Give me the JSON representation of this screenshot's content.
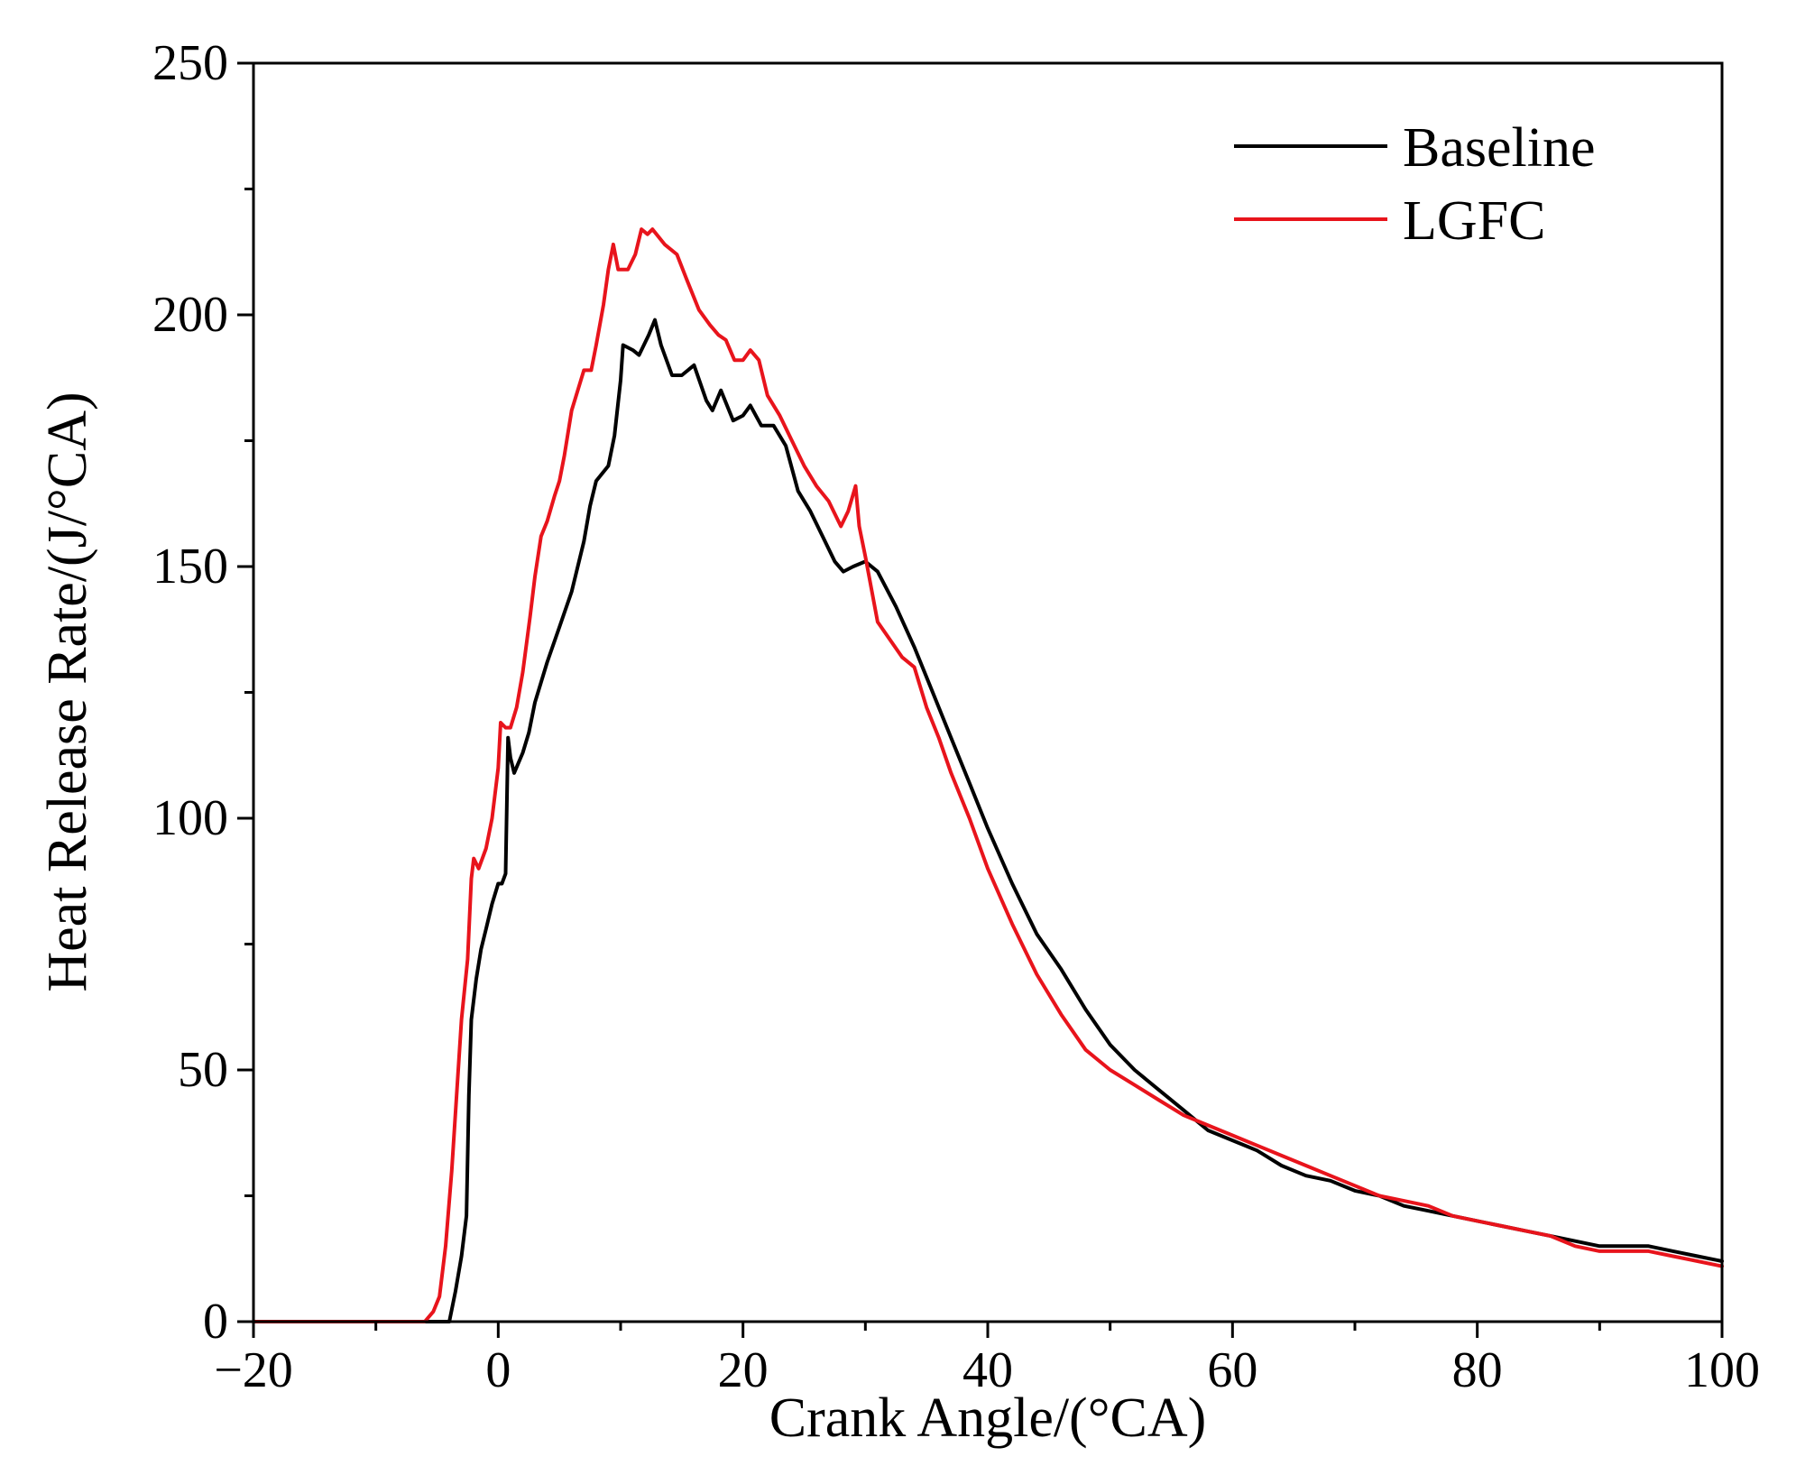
{
  "chart_data": {
    "type": "line",
    "title": "",
    "xlabel": "Crank Angle/(°CA)",
    "ylabel": "Heat Release Rate/(J/°CA)",
    "xlim": [
      -20,
      100
    ],
    "ylim": [
      0,
      250
    ],
    "xticks": [
      -20,
      0,
      20,
      40,
      60,
      80,
      100
    ],
    "xtick_labels": [
      "−20",
      "0",
      "20",
      "40",
      "60",
      "80",
      "100"
    ],
    "yticks": [
      0,
      50,
      100,
      150,
      200,
      250
    ],
    "ytick_labels": [
      "0",
      "50",
      "100",
      "150",
      "200",
      "250"
    ],
    "x_minor_step": 10,
    "y_minor_step": 25,
    "grid": false,
    "legend_position": "top-right",
    "series": [
      {
        "name": "Baseline",
        "color": "#000000",
        "points": [
          [
            -20,
            0
          ],
          [
            -4,
            0
          ],
          [
            -3.5,
            6
          ],
          [
            -3,
            13
          ],
          [
            -2.6,
            21
          ],
          [
            -2.4,
            45
          ],
          [
            -2.2,
            60
          ],
          [
            -1.8,
            68
          ],
          [
            -1.4,
            74
          ],
          [
            -1,
            78
          ],
          [
            -0.5,
            83
          ],
          [
            0,
            87
          ],
          [
            0.3,
            87
          ],
          [
            0.6,
            89
          ],
          [
            0.8,
            116
          ],
          [
            1,
            112
          ],
          [
            1.3,
            109
          ],
          [
            2,
            113
          ],
          [
            2.5,
            117
          ],
          [
            3,
            123
          ],
          [
            4,
            131
          ],
          [
            5,
            138
          ],
          [
            6,
            145
          ],
          [
            7,
            155
          ],
          [
            7.5,
            162
          ],
          [
            8,
            167
          ],
          [
            9,
            170
          ],
          [
            9.5,
            176
          ],
          [
            10,
            187
          ],
          [
            10.2,
            194
          ],
          [
            11,
            193
          ],
          [
            11.5,
            192
          ],
          [
            12.3,
            196
          ],
          [
            12.8,
            199
          ],
          [
            13.3,
            194
          ],
          [
            14.2,
            188
          ],
          [
            15,
            188
          ],
          [
            16,
            190
          ],
          [
            17,
            183
          ],
          [
            17.5,
            181
          ],
          [
            18.2,
            185
          ],
          [
            19.2,
            179
          ],
          [
            20,
            180
          ],
          [
            20.6,
            182
          ],
          [
            21.5,
            178
          ],
          [
            22.5,
            178
          ],
          [
            23.5,
            174
          ],
          [
            24.5,
            165
          ],
          [
            25.5,
            161
          ],
          [
            26.5,
            156
          ],
          [
            27.5,
            151
          ],
          [
            28.2,
            149
          ],
          [
            29,
            150
          ],
          [
            30,
            151
          ],
          [
            31,
            149
          ],
          [
            32.5,
            142
          ],
          [
            34,
            134
          ],
          [
            35.5,
            125
          ],
          [
            37,
            116
          ],
          [
            38.5,
            107
          ],
          [
            40,
            98
          ],
          [
            42,
            87
          ],
          [
            44,
            77
          ],
          [
            46,
            70
          ],
          [
            48,
            62
          ],
          [
            50,
            55
          ],
          [
            52,
            50
          ],
          [
            54,
            46
          ],
          [
            56,
            42
          ],
          [
            58,
            38
          ],
          [
            60,
            36
          ],
          [
            62,
            34
          ],
          [
            64,
            31
          ],
          [
            66,
            29
          ],
          [
            68,
            28
          ],
          [
            70,
            26
          ],
          [
            72,
            25
          ],
          [
            74,
            23
          ],
          [
            76,
            22
          ],
          [
            78,
            21
          ],
          [
            80,
            20
          ],
          [
            82,
            19
          ],
          [
            84,
            18
          ],
          [
            86,
            17
          ],
          [
            88,
            16
          ],
          [
            90,
            15
          ],
          [
            92,
            15
          ],
          [
            94,
            15
          ],
          [
            96,
            14
          ],
          [
            98,
            13
          ],
          [
            100,
            12
          ]
        ]
      },
      {
        "name": "LGFC",
        "color": "#e8141c",
        "points": [
          [
            -20,
            0
          ],
          [
            -6,
            0
          ],
          [
            -5.3,
            2
          ],
          [
            -4.8,
            5
          ],
          [
            -4.3,
            15
          ],
          [
            -3.8,
            30
          ],
          [
            -3.4,
            45
          ],
          [
            -3,
            60
          ],
          [
            -2.5,
            72
          ],
          [
            -2.2,
            88
          ],
          [
            -2,
            92
          ],
          [
            -1.6,
            90
          ],
          [
            -1,
            94
          ],
          [
            -0.5,
            100
          ],
          [
            0,
            110
          ],
          [
            0.2,
            119
          ],
          [
            0.6,
            118
          ],
          [
            1,
            118
          ],
          [
            1.5,
            122
          ],
          [
            2,
            129
          ],
          [
            2.6,
            140
          ],
          [
            3,
            148
          ],
          [
            3.5,
            156
          ],
          [
            4,
            159
          ],
          [
            4.6,
            164
          ],
          [
            5,
            167
          ],
          [
            5.4,
            172
          ],
          [
            6,
            181
          ],
          [
            7,
            189
          ],
          [
            7.6,
            189
          ],
          [
            8,
            194
          ],
          [
            8.6,
            202
          ],
          [
            9,
            209
          ],
          [
            9.4,
            214
          ],
          [
            9.8,
            209
          ],
          [
            10.6,
            209
          ],
          [
            11.2,
            212
          ],
          [
            11.7,
            217
          ],
          [
            12.2,
            216
          ],
          [
            12.6,
            217
          ],
          [
            13.6,
            214
          ],
          [
            14.6,
            212
          ],
          [
            15.4,
            207
          ],
          [
            16.4,
            201
          ],
          [
            17.3,
            198
          ],
          [
            18,
            196
          ],
          [
            18.6,
            195
          ],
          [
            19.3,
            191
          ],
          [
            20,
            191
          ],
          [
            20.6,
            193
          ],
          [
            21.3,
            191
          ],
          [
            22,
            184
          ],
          [
            23,
            180
          ],
          [
            24,
            175
          ],
          [
            25,
            170
          ],
          [
            26,
            166
          ],
          [
            27,
            163
          ],
          [
            28,
            158
          ],
          [
            28.6,
            161
          ],
          [
            29.2,
            166
          ],
          [
            29.5,
            158
          ],
          [
            30,
            152
          ],
          [
            31,
            139
          ],
          [
            33,
            132
          ],
          [
            34,
            130
          ],
          [
            35,
            122
          ],
          [
            36,
            116
          ],
          [
            37,
            109
          ],
          [
            38.5,
            100
          ],
          [
            40,
            90
          ],
          [
            42,
            79
          ],
          [
            44,
            69
          ],
          [
            46,
            61
          ],
          [
            48,
            54
          ],
          [
            50,
            50
          ],
          [
            52,
            47
          ],
          [
            54,
            44
          ],
          [
            56,
            41
          ],
          [
            58,
            39
          ],
          [
            60,
            37
          ],
          [
            62,
            35
          ],
          [
            64,
            33
          ],
          [
            66,
            31
          ],
          [
            68,
            29
          ],
          [
            70,
            27
          ],
          [
            72,
            25
          ],
          [
            74,
            24
          ],
          [
            76,
            23
          ],
          [
            78,
            21
          ],
          [
            80,
            20
          ],
          [
            82,
            19
          ],
          [
            84,
            18
          ],
          [
            86,
            17
          ],
          [
            88,
            15
          ],
          [
            90,
            14
          ],
          [
            92,
            14
          ],
          [
            94,
            14
          ],
          [
            96,
            13
          ],
          [
            98,
            12
          ],
          [
            100,
            11
          ]
        ]
      }
    ]
  }
}
